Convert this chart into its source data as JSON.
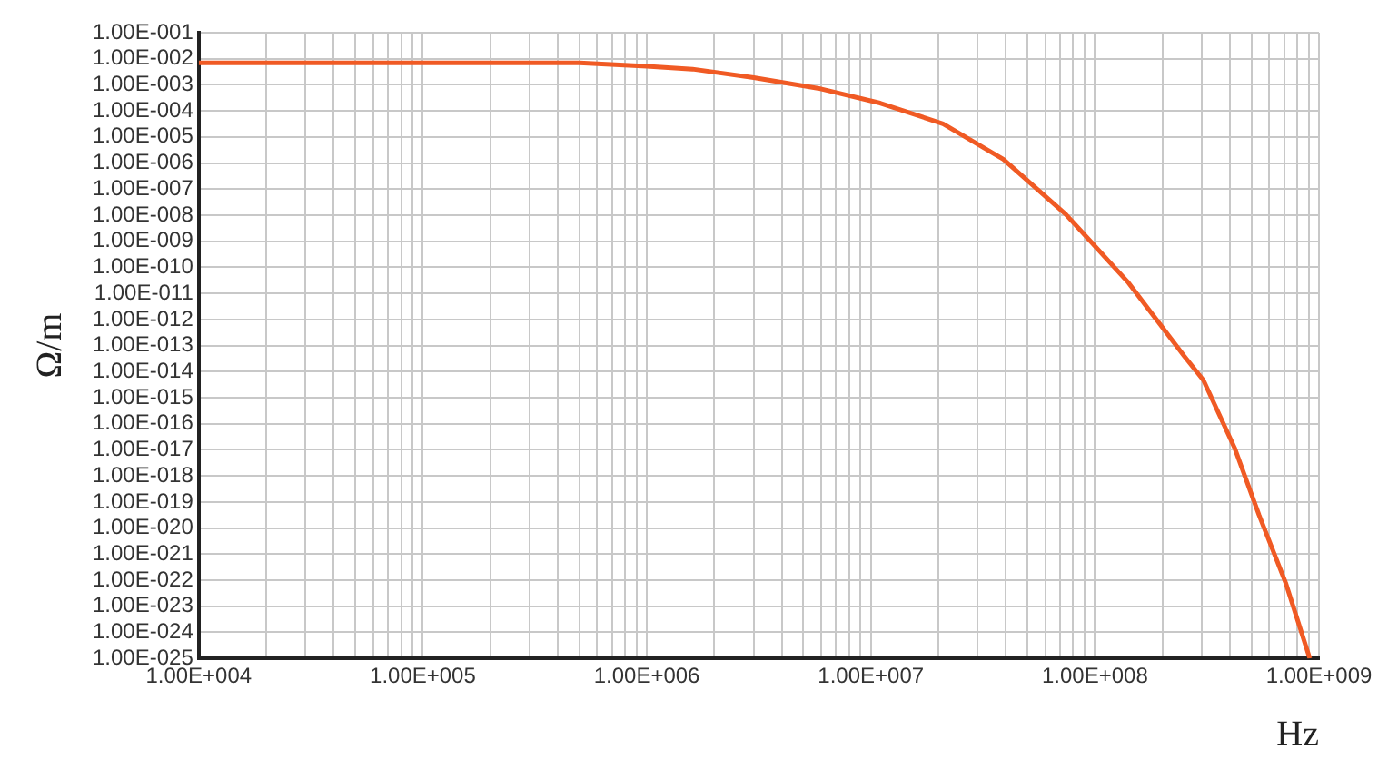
{
  "chart_data": {
    "type": "line",
    "xlabel": "Hz",
    "ylabel": "Ω/m",
    "log": "xy",
    "grid": true,
    "marker": "none",
    "line_style": "solid",
    "x": [
      10000,
      500000,
      1000000,
      1600000,
      3000000,
      5800000,
      11000000,
      21000000,
      39000000,
      74000000,
      140000000,
      250000000,
      305000000,
      420000000,
      540000000,
      710000000,
      910000000
    ],
    "series": [
      {
        "color": "#f05a24",
        "values": [
          0.007,
          0.007,
          0.0051,
          0.004,
          0.0019,
          0.00074,
          0.0002,
          3.2e-05,
          1.4e-06,
          1.1e-08,
          2.8e-11,
          4e-14,
          4.7e-15,
          1.2e-17,
          3.2e-20,
          8e-23,
          1e-25
        ]
      }
    ],
    "xlim": [
      10000,
      1000000000
    ],
    "ylim": [
      1e-25,
      0.1
    ],
    "xticks": [
      {
        "value": 10000,
        "label": "1.00E+004"
      },
      {
        "value": 20000,
        "label": null
      },
      {
        "value": 30000,
        "label": null
      },
      {
        "value": 40000,
        "label": null
      },
      {
        "value": 50000,
        "label": null
      },
      {
        "value": 60000,
        "label": null
      },
      {
        "value": 70000,
        "label": null
      },
      {
        "value": 80000,
        "label": null
      },
      {
        "value": 90000,
        "label": null
      },
      {
        "value": 100000,
        "label": "1.00E+005"
      },
      {
        "value": 200000,
        "label": null
      },
      {
        "value": 300000,
        "label": null
      },
      {
        "value": 400000,
        "label": null
      },
      {
        "value": 500000,
        "label": null
      },
      {
        "value": 600000,
        "label": null
      },
      {
        "value": 700000,
        "label": null
      },
      {
        "value": 800000,
        "label": null
      },
      {
        "value": 900000,
        "label": null
      },
      {
        "value": 1000000,
        "label": "1.00E+006"
      },
      {
        "value": 2000000,
        "label": null
      },
      {
        "value": 3000000,
        "label": null
      },
      {
        "value": 4000000,
        "label": null
      },
      {
        "value": 5000000,
        "label": null
      },
      {
        "value": 6000000,
        "label": null
      },
      {
        "value": 7000000,
        "label": null
      },
      {
        "value": 8000000,
        "label": null
      },
      {
        "value": 9000000,
        "label": null
      },
      {
        "value": 10000000,
        "label": "1.00E+007"
      },
      {
        "value": 20000000,
        "label": null
      },
      {
        "value": 30000000,
        "label": null
      },
      {
        "value": 40000000,
        "label": null
      },
      {
        "value": 50000000,
        "label": null
      },
      {
        "value": 60000000,
        "label": null
      },
      {
        "value": 70000000,
        "label": null
      },
      {
        "value": 80000000,
        "label": null
      },
      {
        "value": 90000000,
        "label": null
      },
      {
        "value": 100000000,
        "label": "1.00E+008"
      },
      {
        "value": 200000000,
        "label": null
      },
      {
        "value": 300000000,
        "label": null
      },
      {
        "value": 400000000,
        "label": null
      },
      {
        "value": 500000000,
        "label": null
      },
      {
        "value": 600000000,
        "label": null
      },
      {
        "value": 700000000,
        "label": null
      },
      {
        "value": 800000000,
        "label": null
      },
      {
        "value": 900000000,
        "label": null
      },
      {
        "value": 1000000000,
        "label": "1.00E+009"
      }
    ],
    "yticks": [
      {
        "value": 0.1,
        "label": "1.00E-001"
      },
      {
        "value": 0.01,
        "label": "1.00E-002"
      },
      {
        "value": 0.001,
        "label": "1.00E-003"
      },
      {
        "value": 0.0001,
        "label": "1.00E-004"
      },
      {
        "value": 1e-05,
        "label": "1.00E-005"
      },
      {
        "value": 1e-06,
        "label": "1.00E-006"
      },
      {
        "value": 1e-07,
        "label": "1.00E-007"
      },
      {
        "value": 1e-08,
        "label": "1.00E-008"
      },
      {
        "value": 1e-09,
        "label": "1.00E-009"
      },
      {
        "value": 1e-10,
        "label": "1.00E-010"
      },
      {
        "value": 1e-11,
        "label": "1.00E-011"
      },
      {
        "value": 1e-12,
        "label": "1.00E-012"
      },
      {
        "value": 1e-13,
        "label": "1.00E-013"
      },
      {
        "value": 1e-14,
        "label": "1.00E-014"
      },
      {
        "value": 1e-15,
        "label": "1.00E-015"
      },
      {
        "value": 1e-16,
        "label": "1.00E-016"
      },
      {
        "value": 1e-17,
        "label": "1.00E-017"
      },
      {
        "value": 1e-18,
        "label": "1.00E-018"
      },
      {
        "value": 1e-19,
        "label": "1.00E-019"
      },
      {
        "value": 1e-20,
        "label": "1.00E-020"
      },
      {
        "value": 1e-21,
        "label": "1.00E-021"
      },
      {
        "value": 1e-22,
        "label": "1.00E-022"
      },
      {
        "value": 1e-23,
        "label": "1.00E-023"
      },
      {
        "value": 1e-24,
        "label": "1.00E-024"
      },
      {
        "value": 1e-25,
        "label": "1.00E-025"
      }
    ]
  }
}
